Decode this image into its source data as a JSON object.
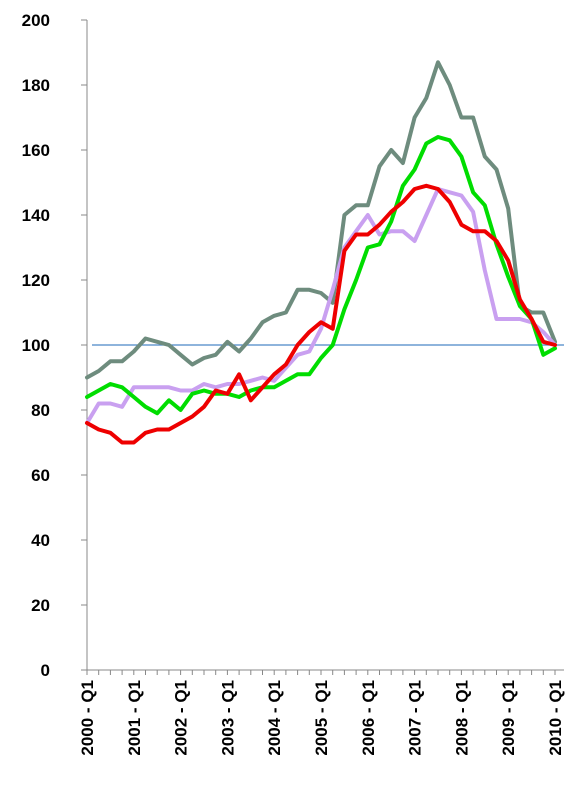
{
  "chart_data": {
    "type": "line",
    "title": "",
    "xlabel": "",
    "ylabel": "",
    "ylim": [
      0,
      200
    ],
    "y_ticks": [
      "0",
      "20",
      "40",
      "60",
      "80",
      "100",
      "120",
      "140",
      "160",
      "180",
      "200"
    ],
    "x_tick_labels": [
      "2000 - Q1",
      "2001 - Q1",
      "2002 - Q1",
      "2003 - Q1",
      "2004 - Q1",
      "2005 - Q1",
      "2006 - Q1",
      "2007 - Q1",
      "2008 - Q1",
      "2009 - Q1",
      "2010 - Q1"
    ],
    "grid": false,
    "legend": "none",
    "reference_line": {
      "value": 100,
      "color": "#4a86c8"
    },
    "x": [
      "2000 - Q1",
      "2000 - Q2",
      "2000 - Q3",
      "2000 - Q4",
      "2001 - Q1",
      "2001 - Q2",
      "2001 - Q3",
      "2001 - Q4",
      "2002 - Q1",
      "2002 - Q2",
      "2002 - Q3",
      "2002 - Q4",
      "2003 - Q1",
      "2003 - Q2",
      "2003 - Q3",
      "2003 - Q4",
      "2004 - Q1",
      "2004 - Q2",
      "2004 - Q3",
      "2004 - Q4",
      "2005 - Q1",
      "2005 - Q2",
      "2005 - Q3",
      "2005 - Q4",
      "2006 - Q1",
      "2006 - Q2",
      "2006 - Q3",
      "2006 - Q4",
      "2007 - Q1",
      "2007 - Q2",
      "2007 - Q3",
      "2007 - Q4",
      "2008 - Q1",
      "2008 - Q2",
      "2008 - Q3",
      "2008 - Q4",
      "2009 - Q1",
      "2009 - Q2",
      "2009 - Q3",
      "2009 - Q4",
      "2010 - Q1"
    ],
    "series": [
      {
        "color": "#6e8c7e",
        "values": [
          90,
          92,
          95,
          95,
          98,
          102,
          101,
          100,
          97,
          94,
          96,
          97,
          101,
          98,
          102,
          107,
          109,
          110,
          117,
          117,
          116,
          113,
          140,
          143,
          143,
          155,
          160,
          156,
          170,
          176,
          187,
          180,
          170,
          170,
          158,
          154,
          142,
          112,
          110,
          110,
          101
        ]
      },
      {
        "color": "#c9a0f0",
        "values": [
          76,
          82,
          82,
          81,
          87,
          87,
          87,
          87,
          86,
          86,
          88,
          87,
          88,
          88,
          89,
          90,
          89,
          93,
          97,
          98,
          105,
          117,
          130,
          135,
          140,
          134,
          135,
          135,
          132,
          140,
          148,
          147,
          146,
          141,
          123,
          108,
          108,
          108,
          107,
          104,
          100
        ]
      },
      {
        "color": "#00dd00",
        "values": [
          84,
          86,
          88,
          87,
          84,
          81,
          79,
          83,
          80,
          85,
          86,
          85,
          85,
          84,
          86,
          87,
          87,
          89,
          91,
          91,
          96,
          100,
          111,
          120,
          130,
          131,
          138,
          149,
          154,
          162,
          164,
          163,
          158,
          147,
          143,
          131,
          121,
          112,
          108,
          97,
          99
        ]
      },
      {
        "color": "#ee0000",
        "values": [
          76,
          74,
          73,
          70,
          70,
          73,
          74,
          74,
          76,
          78,
          81,
          86,
          85,
          91,
          83,
          87,
          91,
          94,
          100,
          104,
          107,
          105,
          129,
          134,
          134,
          137,
          141,
          144,
          148,
          149,
          148,
          144,
          137,
          135,
          135,
          132,
          126,
          114,
          108,
          101,
          100
        ]
      }
    ]
  }
}
